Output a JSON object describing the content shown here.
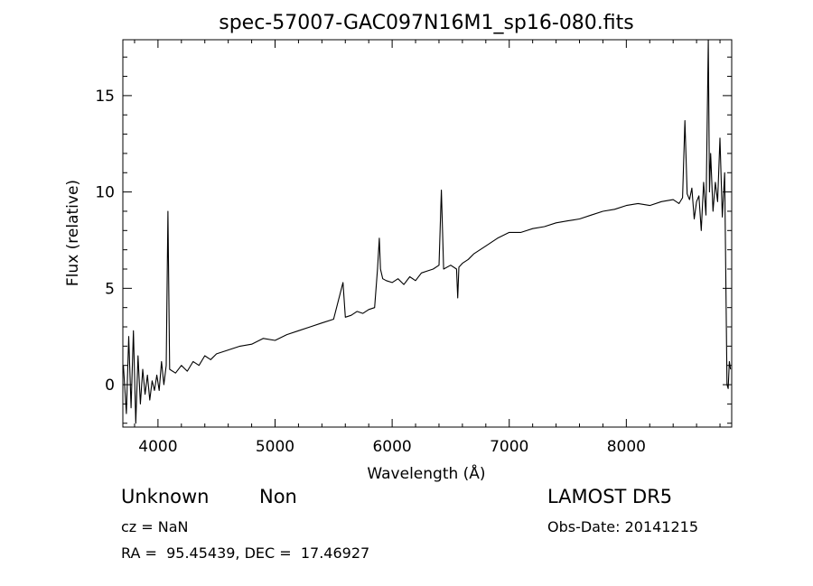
{
  "chart_data": {
    "type": "line",
    "title": "spec-57007-GAC097N16M1_sp16-080.fits",
    "xlabel": "Wavelength (Å)",
    "ylabel": "Flux (relative)",
    "xlim": [
      3700,
      8900
    ],
    "ylim": [
      -2.2,
      17.9
    ],
    "xticks": [
      4000,
      5000,
      6000,
      7000,
      8000
    ],
    "xtick_labels": [
      "4000",
      "5000",
      "6000",
      "7000",
      "8000"
    ],
    "yticks": [
      0,
      5,
      10,
      15
    ],
    "ytick_labels": [
      "0",
      "5",
      "10",
      "15"
    ],
    "grid": false,
    "legend": "none",
    "line_color": "#000000",
    "series": [
      {
        "x": [
          3705,
          3730,
          3750,
          3770,
          3790,
          3810,
          3830,
          3850,
          3870,
          3890,
          3910,
          3930,
          3950,
          3970,
          3990,
          4010,
          4030,
          4050,
          4070,
          4085,
          4100,
          4150,
          4200,
          4250,
          4300,
          4350,
          4400,
          4450,
          4500,
          4600,
          4700,
          4800,
          4900,
          5000,
          5100,
          5200,
          5300,
          5400,
          5500,
          5580,
          5600,
          5650,
          5700,
          5750,
          5800,
          5850,
          5875,
          5890,
          5900,
          5920,
          5950,
          6000,
          6050,
          6100,
          6150,
          6200,
          6250,
          6300,
          6350,
          6400,
          6420,
          6440,
          6500,
          6550,
          6560,
          6570,
          6600,
          6650,
          6700,
          6800,
          6900,
          7000,
          7100,
          7200,
          7300,
          7400,
          7500,
          7600,
          7700,
          7800,
          7900,
          8000,
          8100,
          8200,
          8300,
          8400,
          8450,
          8480,
          8500,
          8520,
          8540,
          8560,
          8580,
          8600,
          8620,
          8640,
          8660,
          8680,
          8700,
          8710,
          8720,
          8740,
          8760,
          8780,
          8800,
          8820,
          8840,
          8860,
          8870,
          8880,
          8890
        ],
        "y": [
          1.0,
          -1.5,
          2.5,
          -1.2,
          2.8,
          -2.0,
          1.5,
          -1.0,
          0.8,
          -0.5,
          0.5,
          -0.8,
          0.2,
          -0.3,
          0.5,
          -0.3,
          1.2,
          0.0,
          1.0,
          9.0,
          0.8,
          0.6,
          1.0,
          0.7,
          1.2,
          1.0,
          1.5,
          1.3,
          1.6,
          1.8,
          2.0,
          2.1,
          2.4,
          2.3,
          2.6,
          2.8,
          3.0,
          3.2,
          3.4,
          5.3,
          3.5,
          3.6,
          3.8,
          3.7,
          3.9,
          4.0,
          6.0,
          7.6,
          6.0,
          5.5,
          5.4,
          5.3,
          5.5,
          5.2,
          5.6,
          5.4,
          5.8,
          5.9,
          6.0,
          6.2,
          10.1,
          6.0,
          6.2,
          6.0,
          4.5,
          6.1,
          6.3,
          6.5,
          6.8,
          7.2,
          7.6,
          7.9,
          7.9,
          8.1,
          8.2,
          8.4,
          8.5,
          8.6,
          8.8,
          9.0,
          9.1,
          9.3,
          9.4,
          9.3,
          9.5,
          9.6,
          9.4,
          9.7,
          13.7,
          9.9,
          9.6,
          10.2,
          8.6,
          9.5,
          9.8,
          8.0,
          10.5,
          8.8,
          17.9,
          10.0,
          12.0,
          9.0,
          10.5,
          9.5,
          12.8,
          8.7,
          11.0,
          0.0,
          -0.2,
          1.2,
          0.8
        ]
      }
    ]
  },
  "annotations": {
    "object_class": "Unknown",
    "subclass": "Non",
    "cz": "cz = NaN",
    "coords": "RA =  95.45439, DEC =  17.46927",
    "survey": "LAMOST DR5",
    "obs_date": "Obs-Date: 20141215"
  }
}
